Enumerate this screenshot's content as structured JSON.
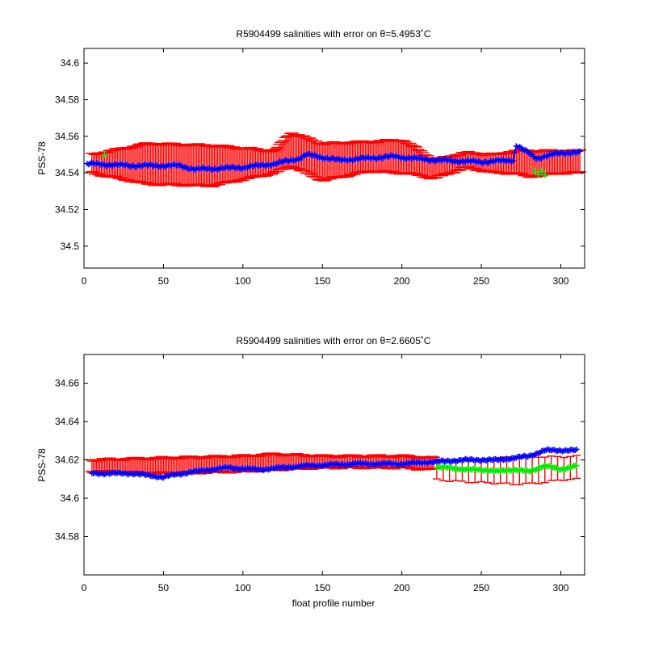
{
  "colors": {
    "error_bars": "#ff0000",
    "calibrated": "#0000ff",
    "raw": "#00ee00",
    "axes": "#000000",
    "background": "#ffffff"
  },
  "shared": {
    "xlabel": "float profile number",
    "ylabel": "PSS-78"
  },
  "chart_data": [
    {
      "type": "scatter",
      "title": "R5904499 salinities with error on θ=5.4953˚C",
      "ylabel": "PSS-78",
      "xlabel": "",
      "xlim": [
        0,
        315
      ],
      "ylim": [
        34.488,
        34.608
      ],
      "xticks": [
        0,
        50,
        100,
        150,
        200,
        250,
        300
      ],
      "yticks": [
        34.5,
        34.52,
        34.54,
        34.56,
        34.58,
        34.6
      ],
      "ytick_labels": [
        "34.5",
        "34.52",
        "34.54",
        "34.56",
        "34.58",
        "34.6"
      ],
      "grid": false,
      "series": [
        {
          "role": "calibrated-error",
          "x": [
            5,
            40,
            80,
            120,
            130,
            150,
            180,
            200,
            210,
            220,
            240,
            260,
            270,
            280,
            300,
            312
          ],
          "values": [
            34.545,
            34.545,
            34.544,
            34.546,
            34.553,
            34.546,
            34.549,
            34.549,
            34.546,
            34.542,
            34.547,
            34.545,
            34.546,
            34.545,
            34.546,
            34.546
          ],
          "err": [
            0.005,
            0.011,
            0.011,
            0.006,
            0.009,
            0.01,
            0.008,
            0.009,
            0.007,
            0.005,
            0.004,
            0.005,
            0.006,
            0.007,
            0.006,
            0.006
          ]
        },
        {
          "role": "raw",
          "x": [
            13,
            284,
            286,
            288,
            290
          ],
          "values": [
            34.55,
            34.541,
            34.539,
            34.541,
            34.539
          ]
        },
        {
          "role": "calibrated",
          "x": [
            2,
            30,
            60,
            70,
            100,
            120,
            136,
            140,
            160,
            195,
            220,
            250,
            270,
            272,
            285,
            300,
            312
          ],
          "values": [
            34.545,
            34.544,
            34.544,
            34.542,
            34.543,
            34.545,
            34.548,
            34.55,
            34.547,
            34.549,
            34.547,
            34.546,
            34.547,
            34.555,
            34.548,
            34.551,
            34.551
          ]
        }
      ]
    },
    {
      "type": "scatter",
      "title": "R5904499 salinities with error on θ=2.6605˚C",
      "ylabel": "PSS-78",
      "xlabel": "float profile number",
      "xlim": [
        0,
        315
      ],
      "ylim": [
        34.56,
        34.675
      ],
      "xticks": [
        0,
        50,
        100,
        150,
        200,
        250,
        300
      ],
      "yticks": [
        34.58,
        34.6,
        34.62,
        34.64,
        34.66
      ],
      "ytick_labels": [
        "34.58",
        "34.6",
        "34.62",
        "34.64",
        "34.66"
      ],
      "grid": false,
      "series": [
        {
          "role": "calibrated-error",
          "x": [
            5,
            50,
            100,
            120,
            150,
            200,
            220
          ],
          "values": [
            34.617,
            34.617,
            34.618,
            34.619,
            34.619,
            34.619,
            34.618
          ],
          "err": [
            0.003,
            0.004,
            0.004,
            0.004,
            0.003,
            0.003,
            0.003
          ]
        },
        {
          "role": "raw-error",
          "x": [
            222,
            250,
            270,
            285,
            300,
            310
          ],
          "values": [
            34.615,
            34.614,
            34.614,
            34.615,
            34.616,
            34.616
          ],
          "err": [
            0.005,
            0.006,
            0.007,
            0.007,
            0.006,
            0.006
          ]
        },
        {
          "role": "raw",
          "x": [
            222,
            230,
            240,
            250,
            260,
            270,
            280,
            290,
            300,
            310
          ],
          "values": [
            34.616,
            34.616,
            34.615,
            34.615,
            34.614,
            34.615,
            34.614,
            34.617,
            34.615,
            34.617
          ]
        },
        {
          "role": "calibrated",
          "x": [
            5,
            30,
            50,
            55,
            70,
            90,
            110,
            140,
            170,
            200,
            220,
            240,
            260,
            280,
            290,
            310
          ],
          "values": [
            34.613,
            34.613,
            34.611,
            34.612,
            34.614,
            34.616,
            34.615,
            34.617,
            34.618,
            34.618,
            34.619,
            34.62,
            34.62,
            34.622,
            34.625,
            34.625
          ]
        }
      ]
    }
  ]
}
